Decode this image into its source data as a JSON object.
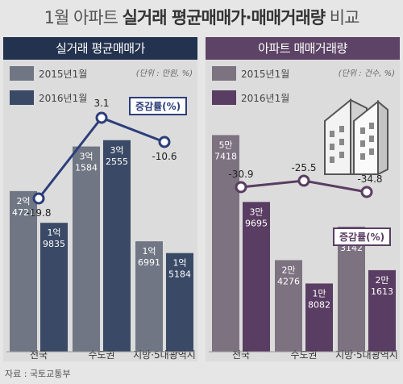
{
  "title": {
    "prefix": "1월 아파트",
    "bold": "실거래 평균매매가·매매거래량",
    "suffix": "비교"
  },
  "source": "자료 : 국토교통부",
  "chart_data": [
    {
      "type": "bar",
      "title": "실거래 평균매매가",
      "unit": "(단위 : 만원, %)",
      "categories": [
        "전국",
        "수도권",
        "지방·5대광역시"
      ],
      "series": [
        {
          "name": "2015년1월",
          "values": [
            24721,
            31584,
            16991
          ],
          "labels": [
            [
              "2억",
              "4721"
            ],
            [
              "3억",
              "1584"
            ],
            [
              "1억",
              "6991"
            ]
          ],
          "color": "#707683"
        },
        {
          "name": "2016년1월",
          "values": [
            19835,
            32555,
            15184
          ],
          "labels": [
            [
              "1억",
              "9835"
            ],
            [
              "3억",
              "2555"
            ],
            [
              "1억",
              "5184"
            ]
          ],
          "color": "#3a4a66"
        }
      ],
      "change": {
        "name": "증감률(%)",
        "values": [
          -19.8,
          3.1,
          -10.6
        ],
        "labels": [
          "-19.8",
          "3.1",
          "-10.6"
        ],
        "color": "#2c3e7a"
      },
      "ylim": [
        0,
        36000
      ]
    },
    {
      "type": "bar",
      "title": "아파트 매매거래량",
      "unit": "(단위 : 건수, %)",
      "categories": [
        "전국",
        "수도권",
        "지방·5대광역시"
      ],
      "series": [
        {
          "name": "2015년1월",
          "values": [
            57418,
            24276,
            33142
          ],
          "labels": [
            [
              "5만",
              "7418"
            ],
            [
              "2만",
              "4276"
            ],
            [
              "3만",
              "3142"
            ]
          ],
          "color": "#7d7280"
        },
        {
          "name": "2016년1월",
          "values": [
            39695,
            18082,
            21613
          ],
          "labels": [
            [
              "3만",
              "9695"
            ],
            [
              "1만",
              "8082"
            ],
            [
              "2만",
              "1613"
            ]
          ],
          "color": "#5a3d62"
        }
      ],
      "change": {
        "name": "증감률(%)",
        "values": [
          -30.9,
          -25.5,
          -34.8
        ],
        "labels": [
          "-30.9",
          "-25.5",
          "-34.8"
        ],
        "color": "#5a3d62"
      },
      "ylim": [
        0,
        62000
      ]
    }
  ]
}
